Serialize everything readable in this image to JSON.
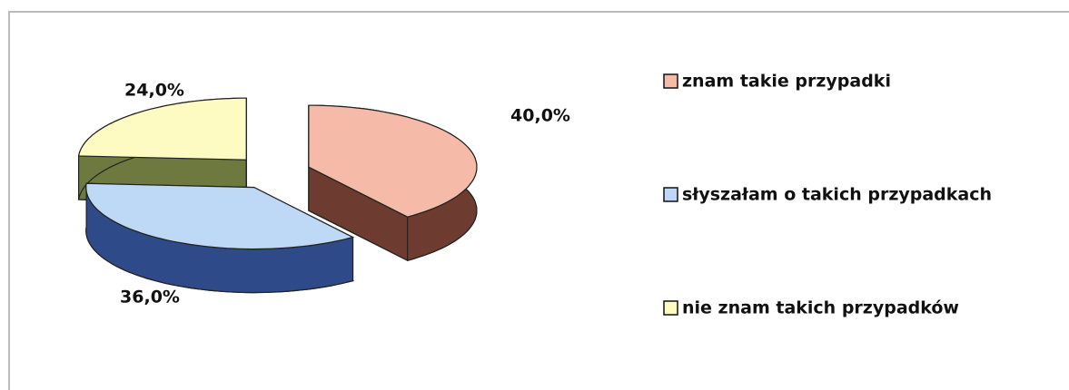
{
  "chart_data": {
    "type": "pie3d",
    "categories": [
      "znam takie przypadki",
      "słyszałam o takich przypadkach",
      "nie znam takich przypadków"
    ],
    "values": [
      40,
      36,
      24
    ],
    "value_labels": [
      "40,0%",
      "36,0%",
      "24,0%"
    ],
    "colors": [
      "#f6bba8",
      "#bed9f6",
      "#fdfbc2"
    ],
    "side_colors": [
      "#6e3b30",
      "#2f4a88",
      "#6e7940"
    ],
    "legend": "right"
  }
}
